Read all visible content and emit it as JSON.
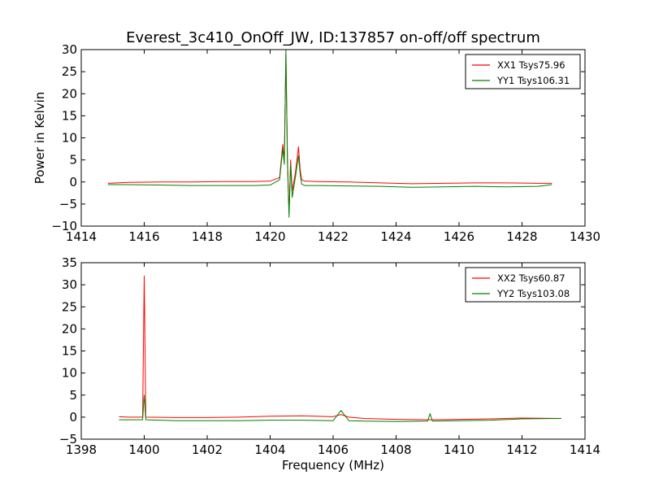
{
  "colors": {
    "xx": "#ff0000",
    "yy": "#008000",
    "axes": "#000000",
    "background": "#ffffff"
  },
  "chart_data": [
    {
      "type": "line",
      "title": "Everest_3c410_OnOff_JW, ID:137857 on-off/off spectrum",
      "xlabel": "",
      "ylabel": "Power in Kelvin",
      "xlim": [
        1414,
        1430
      ],
      "ylim": [
        -10,
        30
      ],
      "xticks": [
        "1414",
        "1416",
        "1418",
        "1420",
        "1422",
        "1424",
        "1426",
        "1428",
        "1430"
      ],
      "yticks": [
        "-10",
        "-5",
        "0",
        "5",
        "10",
        "15",
        "20",
        "25",
        "30"
      ],
      "legend": "top-right",
      "grid": false,
      "series": [
        {
          "name": "XX1 Tsys75.96",
          "color": "#ff0000",
          "x": [
            1414.85,
            1415.5,
            1416.5,
            1417.5,
            1418.5,
            1419.5,
            1420.0,
            1420.3,
            1420.4,
            1420.45,
            1420.5,
            1420.55,
            1420.6,
            1420.65,
            1420.7,
            1420.8,
            1420.9,
            1420.95,
            1421.0,
            1421.1,
            1421.5,
            1422.5,
            1423.5,
            1424.5,
            1425.5,
            1426.5,
            1427.5,
            1428.5,
            1428.95
          ],
          "values": [
            -0.3,
            -0.1,
            0.0,
            0.0,
            0.1,
            0.1,
            0.2,
            1.0,
            8.5,
            5.0,
            29.0,
            5.0,
            -7.0,
            5.0,
            -2.0,
            2.0,
            8.0,
            3.0,
            0.5,
            0.2,
            0.1,
            0.0,
            -0.2,
            -0.4,
            -0.3,
            -0.2,
            -0.2,
            -0.3,
            -0.3
          ]
        },
        {
          "name": "YY1 Tsys106.31",
          "color": "#008000",
          "x": [
            1414.85,
            1415.5,
            1416.5,
            1417.5,
            1418.5,
            1419.5,
            1420.0,
            1420.3,
            1420.4,
            1420.45,
            1420.5,
            1420.55,
            1420.6,
            1420.65,
            1420.7,
            1420.8,
            1420.9,
            1420.95,
            1421.0,
            1421.1,
            1421.5,
            1422.5,
            1423.5,
            1424.5,
            1425.5,
            1426.5,
            1427.5,
            1428.5,
            1428.95
          ],
          "values": [
            -0.6,
            -0.6,
            -0.7,
            -0.8,
            -0.8,
            -0.8,
            -0.7,
            0.5,
            7.5,
            4.0,
            30.0,
            4.0,
            -8.0,
            4.0,
            -3.5,
            1.0,
            6.0,
            2.0,
            -0.5,
            -0.8,
            -0.8,
            -0.9,
            -1.0,
            -1.2,
            -1.1,
            -1.0,
            -1.1,
            -1.0,
            -0.6
          ]
        }
      ]
    },
    {
      "type": "line",
      "title": "",
      "xlabel": "Frequency (MHz)",
      "ylabel": "",
      "xlim": [
        1398,
        1414
      ],
      "ylim": [
        -5,
        35
      ],
      "xticks": [
        "1398",
        "1400",
        "1402",
        "1404",
        "1406",
        "1408",
        "1410",
        "1412",
        "1414"
      ],
      "yticks": [
        "-5",
        "0",
        "5",
        "10",
        "15",
        "20",
        "25",
        "30",
        "35"
      ],
      "legend": "top-right",
      "grid": false,
      "series": [
        {
          "name": "XX2 Tsys60.87",
          "color": "#ff0000",
          "x": [
            1399.2,
            1399.5,
            1399.95,
            1400.0,
            1400.05,
            1401.0,
            1402.0,
            1403.0,
            1404.0,
            1405.0,
            1406.0,
            1406.25,
            1406.5,
            1407.0,
            1408.0,
            1409.0,
            1410.0,
            1411.0,
            1412.0,
            1413.25
          ],
          "values": [
            0.1,
            0.0,
            0.0,
            32.0,
            0.0,
            -0.1,
            -0.1,
            0.0,
            0.2,
            0.3,
            0.1,
            0.6,
            0.0,
            -0.3,
            -0.5,
            -0.6,
            -0.5,
            -0.4,
            -0.2,
            -0.3
          ]
        },
        {
          "name": "YY2 Tsys103.08",
          "color": "#008000",
          "x": [
            1399.2,
            1399.5,
            1399.95,
            1400.0,
            1400.05,
            1401.0,
            1402.0,
            1403.0,
            1404.0,
            1405.0,
            1406.0,
            1406.25,
            1406.5,
            1407.0,
            1408.0,
            1409.0,
            1409.08,
            1409.15,
            1410.0,
            1411.0,
            1412.0,
            1413.25
          ],
          "values": [
            -0.6,
            -0.6,
            -0.6,
            5.0,
            -0.6,
            -0.8,
            -0.8,
            -0.8,
            -0.7,
            -0.7,
            -0.8,
            1.5,
            -0.8,
            -0.9,
            -1.0,
            -0.9,
            0.8,
            -0.9,
            -0.8,
            -0.7,
            -0.4,
            -0.3
          ]
        }
      ]
    }
  ]
}
